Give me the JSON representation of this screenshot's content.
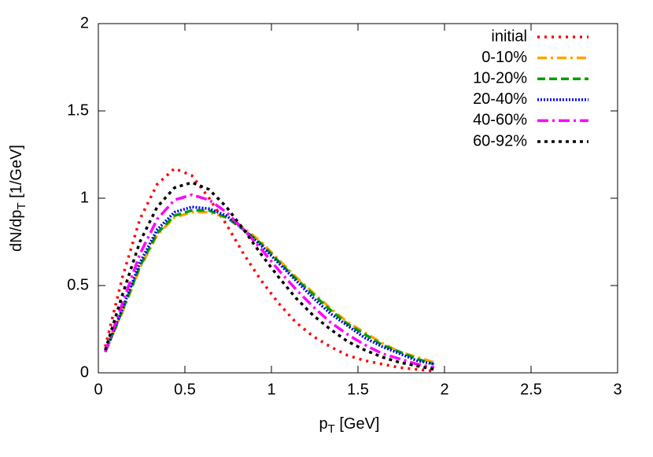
{
  "chart_data": {
    "type": "line",
    "xlabel": [
      "p",
      "T",
      " [GeV]"
    ],
    "ylabel": [
      "dN/dp",
      "T",
      " [1/GeV]"
    ],
    "x": [
      0.04,
      0.14,
      0.24,
      0.34,
      0.44,
      0.54,
      0.64,
      0.74,
      0.84,
      0.94,
      1.04,
      1.14,
      1.24,
      1.34,
      1.44,
      1.54,
      1.64,
      1.74,
      1.84,
      1.94
    ],
    "series": [
      {
        "name": "initial",
        "color": "#ff0000",
        "values": [
          0.15,
          0.55,
          0.88,
          1.08,
          1.17,
          1.13,
          1.0,
          0.85,
          0.68,
          0.53,
          0.4,
          0.29,
          0.21,
          0.15,
          0.1,
          0.07,
          0.05,
          0.03,
          0.02,
          0.01
        ]
      },
      {
        "name": "0-10%",
        "color": "#ffa500",
        "values": [
          0.12,
          0.35,
          0.6,
          0.79,
          0.89,
          0.92,
          0.92,
          0.89,
          0.83,
          0.75,
          0.65,
          0.55,
          0.46,
          0.37,
          0.29,
          0.23,
          0.17,
          0.12,
          0.09,
          0.06
        ]
      },
      {
        "name": "10-20%",
        "color": "#00a000",
        "values": [
          0.12,
          0.36,
          0.61,
          0.8,
          0.9,
          0.93,
          0.93,
          0.89,
          0.82,
          0.74,
          0.64,
          0.54,
          0.45,
          0.36,
          0.28,
          0.22,
          0.16,
          0.12,
          0.08,
          0.05
        ]
      },
      {
        "name": "20-40%",
        "color": "#0000ff",
        "values": [
          0.12,
          0.37,
          0.63,
          0.82,
          0.92,
          0.95,
          0.94,
          0.9,
          0.82,
          0.73,
          0.63,
          0.53,
          0.43,
          0.34,
          0.27,
          0.2,
          0.15,
          0.11,
          0.07,
          0.05
        ]
      },
      {
        "name": "40-60%",
        "color": "#ff00ff",
        "values": [
          0.12,
          0.4,
          0.68,
          0.88,
          0.99,
          1.02,
          0.99,
          0.92,
          0.82,
          0.71,
          0.59,
          0.48,
          0.38,
          0.29,
          0.22,
          0.16,
          0.11,
          0.08,
          0.05,
          0.03
        ]
      },
      {
        "name": "60-92%",
        "color": "#000000",
        "values": [
          0.13,
          0.45,
          0.75,
          0.95,
          1.06,
          1.09,
          1.05,
          0.95,
          0.82,
          0.68,
          0.55,
          0.43,
          0.33,
          0.25,
          0.18,
          0.13,
          0.09,
          0.06,
          0.04,
          0.02
        ]
      }
    ],
    "xlim": [
      0,
      3
    ],
    "xticks": [
      0,
      0.5,
      1,
      1.5,
      2,
      2.5,
      3
    ],
    "ylim": [
      0,
      2
    ],
    "yticks": [
      0,
      0.5,
      1,
      1.5,
      2
    ],
    "legend": "top-right",
    "grid": false
  }
}
